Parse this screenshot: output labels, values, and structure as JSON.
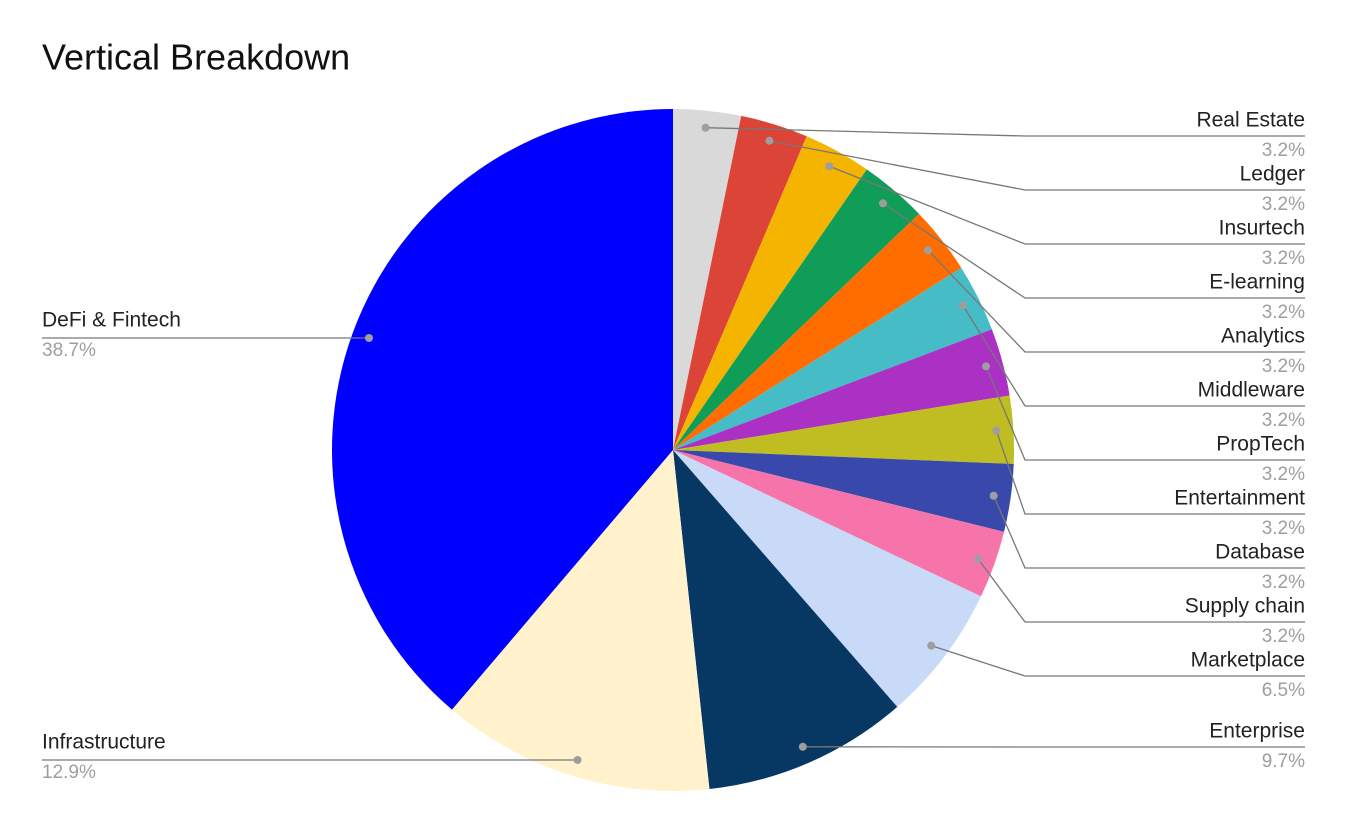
{
  "chart_data": {
    "type": "pie",
    "title": "Vertical Breakdown",
    "categories": [
      "Real Estate",
      "Ledger",
      "Insurtech",
      "E-learning",
      "Analytics",
      "Middleware",
      "PropTech",
      "Entertainment",
      "Database",
      "Supply chain",
      "Marketplace",
      "Enterprise",
      "Infrastructure",
      "DeFi & Fintech"
    ],
    "values": [
      3.2,
      3.2,
      3.2,
      3.2,
      3.2,
      3.2,
      3.2,
      3.2,
      3.2,
      3.2,
      6.5,
      9.7,
      12.9,
      38.7
    ],
    "value_labels": [
      "3.2%",
      "3.2%",
      "3.2%",
      "3.2%",
      "3.2%",
      "3.2%",
      "3.2%",
      "3.2%",
      "3.2%",
      "3.2%",
      "6.5%",
      "9.7%",
      "12.9%",
      "38.7%"
    ],
    "colors": [
      "#d9d9d9",
      "#db4437",
      "#f4b400",
      "#0f9d58",
      "#ff6d00",
      "#46bdc6",
      "#ab30c4",
      "#c0bd22",
      "#3949ab",
      "#f774aa",
      "#c9daf8",
      "#073763",
      "#fff2cc",
      "#0000ff"
    ]
  }
}
